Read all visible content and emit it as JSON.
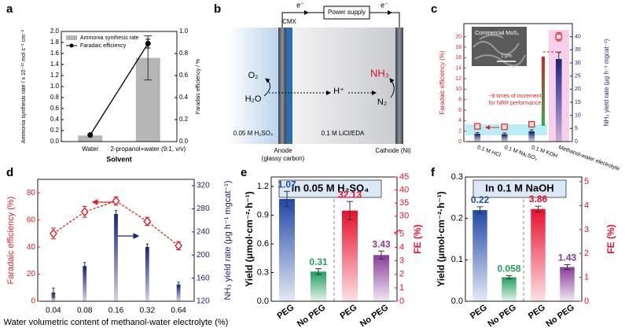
{
  "chart_data": [
    {
      "type": "combo",
      "panel": "a",
      "xlabel": "Solvent",
      "ylabel": "Ammonia synthesis rate / x 10⁻¹¹ mol s⁻¹ cm⁻²",
      "y2label": "Faradaic efficiency / %",
      "categories": [
        "Water",
        "2-propanol+water (9:1, v/v)"
      ],
      "series": [
        {
          "name": "Ammonia synthesis rate",
          "type": "bar",
          "color": "#b5b5b5",
          "values": [
            0.11,
            1.52
          ],
          "errors": [
            null,
            0.4
          ]
        },
        {
          "name": "Faradaic efficiency",
          "type": "line",
          "axis": "y2",
          "color": "#000000",
          "marker": "circle",
          "values": [
            0.06,
            0.89
          ],
          "errors": [
            null,
            0.04
          ]
        }
      ],
      "ylim": [
        0,
        2.0
      ],
      "yticks": [
        {
          "value": 0,
          "label": "0.0"
        },
        0.2,
        0.4,
        0.6,
        0.8,
        {
          "value": 1,
          "label": "1.0"
        },
        1.2,
        1.4,
        1.6,
        1.8,
        {
          "value": 2,
          "label": "2.0"
        }
      ],
      "y2lim": [
        0,
        1.0
      ],
      "y2ticks": [
        {
          "value": 0,
          "label": "0.0"
        },
        0.2,
        0.4,
        0.6,
        0.8,
        {
          "value": 1,
          "label": "1.0"
        }
      ],
      "legend": "upper left"
    },
    {
      "type": "combo",
      "panel": "c",
      "ylabel": "Faradaic efficiency (%)",
      "y2label": "NH₃ yield rate (μg h⁻¹ mgcat⁻¹)",
      "ycolor": "#e02020",
      "y2color": "#1a237e",
      "categories": [
        "0.1 M HCl",
        "0.1 M Na₂SO₄",
        "0.1 M KOH",
        "Methanol-water electrolyte"
      ],
      "series": [
        {
          "type": "bar",
          "axis": "y2",
          "color": "#1a237e",
          "gradient": true,
          "values": [
            3.0,
            2.8,
            3.9,
            31.5
          ],
          "errors": [
            0.5,
            0.5,
            0.6,
            2.5
          ]
        },
        {
          "type": "scatter",
          "color": "#e02020",
          "marker": "square",
          "values": [
            2.9,
            2.8,
            3.3,
            20.0
          ],
          "errors": [
            0.4,
            0.4,
            0.5,
            0.8
          ]
        }
      ],
      "ylim": [
        0,
        22.5
      ],
      "yticks": [
        0,
        2,
        4,
        6,
        8,
        10,
        12,
        14,
        16,
        18,
        20
      ],
      "y2lim": [
        0,
        45
      ],
      "y2ticks": [
        0,
        5,
        10,
        15,
        20,
        25,
        30,
        35,
        40
      ],
      "annotation": [
        "~8 times of increment",
        "for NRR performance"
      ],
      "inset_label": "Commercial MoS₂",
      "scale_bar": "1 μm"
    },
    {
      "type": "combo",
      "panel": "d",
      "xlabel": "Water volumetric content of methanol-water electrolyte (%)",
      "ylabel": "Faradaic efficiency (%)",
      "y2label": "NH₃ yield rate (μg h⁻¹ mgcat⁻¹)",
      "ycolor": "#e02020",
      "y2color": "#1a237e",
      "categories": [
        "0.04",
        "0.08",
        "0.16",
        "0.32",
        "0.64"
      ],
      "series": [
        {
          "type": "bar",
          "axis": "y2",
          "color": "#1a237e",
          "gradient": true,
          "values": [
            135,
            181,
            271,
            214,
            149
          ],
          "errors": [
            8,
            6,
            6,
            5,
            4
          ]
        },
        {
          "type": "line",
          "color": "#e02020",
          "marker": "diamond",
          "dash": true,
          "values": [
            50,
            66,
            74,
            59,
            41
          ],
          "errors": [
            4,
            4,
            3,
            3,
            3
          ]
        }
      ],
      "ylim": [
        0,
        90
      ],
      "yticks": [
        0,
        20,
        40,
        60,
        80
      ],
      "y2lim": [
        120,
        331
      ],
      "y2ticks": [
        120,
        160,
        200,
        240,
        280,
        320
      ]
    },
    {
      "type": "split",
      "panel": "e",
      "title": "In 0.05 M H₂SO₄",
      "ylabel": "Yield (μmol·cm⁻²·h⁻¹)",
      "y2label": "FE (%)",
      "y2color": "#e8102e",
      "groups": [
        {
          "axis": "y",
          "categories": [
            "PEG",
            "No PEG"
          ],
          "values": [
            1.07,
            0.31
          ],
          "errors": [
            0.08,
            0.03
          ],
          "colors": [
            "#2148a8",
            "#1fa060"
          ]
        },
        {
          "axis": "y2",
          "categories": [
            "PEG",
            "No PEG"
          ],
          "values": [
            32.13,
            3.43
          ],
          "errors": [
            3.5,
            0.3
          ],
          "colors": [
            "#e8102e",
            "#8a3b9a"
          ]
        }
      ],
      "ylim": [
        0,
        1.3
      ],
      "yticks": [
        {
          "value": 0,
          "label": "0.0"
        },
        0.3,
        0.6,
        0.9,
        1.2
      ],
      "y2lim": [
        0,
        45
      ],
      "y2break": [
        5,
        25
      ],
      "y2ticks": [
        0,
        1,
        2,
        3,
        4,
        5,
        30,
        35,
        40,
        45
      ]
    },
    {
      "type": "split",
      "panel": "f",
      "title": "In 0.1 M NaOH",
      "ylabel": "Yield (μmol·cm⁻²·h⁻¹)",
      "y2label": "FE (%)",
      "y2color": "#e8102e",
      "groups": [
        {
          "axis": "y",
          "categories": [
            "PEG",
            "No PEG"
          ],
          "values": [
            0.22,
            0.058
          ],
          "errors": [
            0.008,
            0.004
          ],
          "colors": [
            "#2148a8",
            "#1fa060"
          ]
        },
        {
          "axis": "y2",
          "categories": [
            "PEG",
            "No PEG"
          ],
          "values": [
            3.86,
            1.43
          ],
          "errors": [
            0.12,
            0.1
          ],
          "colors": [
            "#e8102e",
            "#8a3b9a"
          ]
        }
      ],
      "ylim": [
        0,
        0.3
      ],
      "yticks": [
        {
          "value": 0,
          "label": "0.0"
        },
        0.1,
        0.2,
        0.3
      ],
      "y2lim": [
        0,
        5.2
      ],
      "y2ticks": [
        0,
        1,
        2,
        3,
        4,
        5
      ]
    }
  ],
  "diagram": {
    "panel": "b",
    "power_supply": "Power supply",
    "electron_left": "e⁻",
    "electron_right": "e⁻",
    "membrane": "CMX",
    "o2": "O₂",
    "h2o": "H₂O",
    "proton": "H⁺",
    "nh3": "NH₃",
    "n2": "N₂",
    "anolyte": "0.05 M H₂SO₄",
    "catholyte": "0.1 M LiCl/EDA",
    "anode": [
      "Anode",
      "(glassy carbon)"
    ],
    "cathode": "Cathode (Ni)"
  }
}
